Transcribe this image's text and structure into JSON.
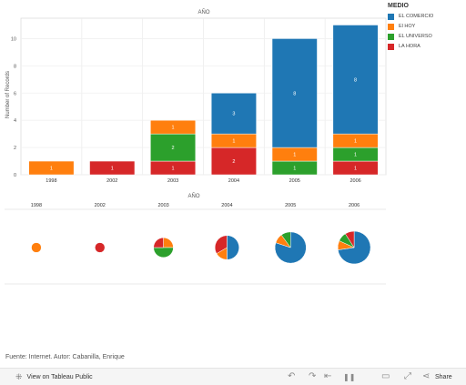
{
  "chart_data": [
    {
      "type": "bar",
      "stacked": true,
      "title": "AÑO",
      "ylabel": "Number of Records",
      "xlabel": "",
      "ylim": [
        0,
        11.5
      ],
      "yticks": [
        0,
        2,
        4,
        6,
        8,
        10
      ],
      "grid": true,
      "categories": [
        "1998",
        "2002",
        "2003",
        "2004",
        "2005",
        "2006"
      ],
      "series": [
        {
          "name": "LA HORA",
          "color": "#d62728",
          "values": [
            0,
            1,
            1,
            2,
            0,
            1
          ],
          "labels": [
            "",
            "1",
            "1",
            "2",
            "",
            "1"
          ]
        },
        {
          "name": "EL UNIVERSO",
          "color": "#2ca02c",
          "values": [
            0,
            0,
            2,
            0,
            1,
            1
          ],
          "labels": [
            "",
            "",
            "2",
            "",
            "1",
            "1"
          ]
        },
        {
          "name": "El HOY",
          "color": "#ff7f0e",
          "values": [
            1,
            0,
            1,
            1,
            1,
            1
          ],
          "labels": [
            "1",
            "",
            "1",
            "1",
            "1",
            "1"
          ]
        },
        {
          "name": "EL COMERCIO",
          "color": "#1f77b4",
          "values": [
            0,
            0,
            0,
            3,
            8,
            8
          ],
          "labels": [
            "",
            "",
            "",
            "3",
            "8",
            "8"
          ]
        }
      ]
    },
    {
      "type": "pie",
      "title": "AÑO",
      "categories": [
        "1998",
        "2002",
        "2003",
        "2004",
        "2005",
        "2006"
      ],
      "pies": [
        {
          "year": "1998",
          "slices": [
            {
              "name": "El HOY",
              "value": 1
            }
          ]
        },
        {
          "year": "2002",
          "slices": [
            {
              "name": "LA HORA",
              "value": 1
            }
          ]
        },
        {
          "year": "2003",
          "slices": [
            {
              "name": "El HOY",
              "value": 1
            },
            {
              "name": "EL UNIVERSO",
              "value": 2
            },
            {
              "name": "LA HORA",
              "value": 1
            }
          ]
        },
        {
          "year": "2004",
          "slices": [
            {
              "name": "EL COMERCIO",
              "value": 3
            },
            {
              "name": "El HOY",
              "value": 1
            },
            {
              "name": "LA HORA",
              "value": 2
            }
          ]
        },
        {
          "year": "2005",
          "slices": [
            {
              "name": "EL COMERCIO",
              "value": 8
            },
            {
              "name": "El HOY",
              "value": 1
            },
            {
              "name": "EL UNIVERSO",
              "value": 1
            }
          ]
        },
        {
          "year": "2006",
          "slices": [
            {
              "name": "EL COMERCIO",
              "value": 8
            },
            {
              "name": "El HOY",
              "value": 1
            },
            {
              "name": "EL UNIVERSO",
              "value": 1
            },
            {
              "name": "LA HORA",
              "value": 1
            }
          ]
        }
      ]
    }
  ],
  "legend": {
    "title": "MEDIO",
    "items": [
      {
        "label": "EL COMERCIO",
        "color": "#1f77b4"
      },
      {
        "label": "El HOY",
        "color": "#ff7f0e"
      },
      {
        "label": "EL UNIVERSO",
        "color": "#2ca02c"
      },
      {
        "label": "LA HORA",
        "color": "#d62728"
      }
    ]
  },
  "source_text": "Fuente: Internet. Autor: Cabanilla, Enrique",
  "footer": {
    "view_label": "View on Tableau Public",
    "share_label": "Share",
    "icons": [
      "tableau-logo-icon",
      "undo-icon",
      "redo-icon",
      "revert-icon",
      "pause-icon",
      "device-preview-icon",
      "fullscreen-icon",
      "share-icon"
    ]
  }
}
